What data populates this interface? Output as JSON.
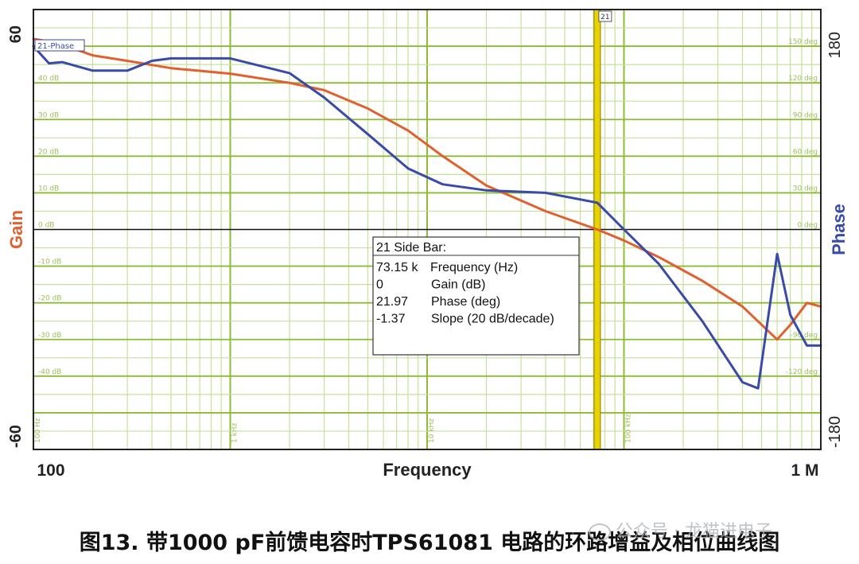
{
  "chart_data": {
    "type": "line",
    "xlabel": "Frequency",
    "ylabel_left": "Gain",
    "ylabel_right": "Phase",
    "x_scale": "log",
    "xlim": [
      100,
      1000000
    ],
    "ylim_left": [
      -60,
      60
    ],
    "ylim_right": [
      -180,
      180
    ],
    "x_tick_labels": [
      {
        "x": 100,
        "label": "100"
      },
      {
        "x": 1000000,
        "label": "1 M"
      }
    ],
    "y_left_tick_labels": [
      {
        "y": 60,
        "label": "60"
      },
      {
        "y": -60,
        "label": "-60"
      }
    ],
    "y_right_tick_labels": [
      {
        "y": 180,
        "label": "180"
      },
      {
        "y": -180,
        "label": "-180"
      }
    ],
    "inner_gain_labels": [
      {
        "y": 40,
        "label": "40 dB"
      },
      {
        "y": 30,
        "label": "30 dB"
      },
      {
        "y": 20,
        "label": "20 dB"
      },
      {
        "y": 10,
        "label": "10 dB"
      },
      {
        "y": 0,
        "label": "0 dB"
      },
      {
        "y": -10,
        "label": "-10 dB"
      },
      {
        "y": -20,
        "label": "-20 dB"
      },
      {
        "y": -30,
        "label": "-30 dB"
      },
      {
        "y": -40,
        "label": "-40 dB"
      }
    ],
    "inner_phase_labels": [
      {
        "y": 150,
        "label": "150 deg"
      },
      {
        "y": 120,
        "label": "120 deg"
      },
      {
        "y": 90,
        "label": "90 deg"
      },
      {
        "y": 60,
        "label": "60 deg"
      },
      {
        "y": 30,
        "label": "30 deg"
      },
      {
        "y": 0,
        "label": "0 deg"
      },
      {
        "y": -90,
        "label": "-90 deg"
      },
      {
        "y": -120,
        "label": "-120 deg"
      }
    ],
    "inner_freq_labels": [
      {
        "x": 100,
        "label": "100 Hz"
      },
      {
        "x": 1000,
        "label": "1 kHz"
      },
      {
        "x": 10000,
        "label": "10 kHz"
      },
      {
        "x": 100000,
        "label": "100 kHz"
      }
    ],
    "series": [
      {
        "name": "Gain",
        "axis": "left",
        "color": "#e06030",
        "x": [
          100,
          130,
          200,
          300,
          500,
          1000,
          2000,
          3000,
          5000,
          8000,
          12000,
          20000,
          40000,
          73150,
          100000,
          150000,
          250000,
          400000,
          600000,
          700000,
          850000,
          1000000
        ],
        "y": [
          52,
          51,
          47.5,
          46,
          44,
          42.5,
          40,
          38,
          33,
          27,
          20,
          12,
          5,
          0,
          -3,
          -7.5,
          -14,
          -21,
          -30,
          -26,
          -20,
          -21
        ]
      },
      {
        "name": "Phase",
        "axis": "right",
        "color": "#3a4aa8",
        "x": [
          100,
          120,
          140,
          200,
          300,
          400,
          500,
          1000,
          2000,
          3000,
          5000,
          8000,
          12000,
          20000,
          40000,
          73150,
          100000,
          150000,
          250000,
          400000,
          480000,
          600000,
          700000,
          850000,
          1000000
        ],
        "y": [
          150,
          136,
          137,
          130,
          130,
          138,
          140,
          140,
          128,
          108,
          78,
          50,
          37,
          32,
          30,
          21.97,
          0,
          -28,
          -75,
          -125,
          -130,
          -20,
          -70,
          -95,
          -95
        ]
      }
    ],
    "marker": {
      "x": 73150,
      "label": "21",
      "color": "#e8d200"
    },
    "legend": {
      "label": "21-Phase",
      "placement": "top-left"
    },
    "side_bar": {
      "title": "21 Side Bar:",
      "rows": [
        {
          "value": "73.15 k",
          "label": "Frequency (Hz)"
        },
        {
          "value": "0",
          "label": "Gain (dB)"
        },
        {
          "value": "21.97",
          "label": "Phase (deg)"
        },
        {
          "value": "-1.37",
          "label": "Slope (20 dB/decade)"
        }
      ]
    },
    "grid": true,
    "background": "#ffffff",
    "grid_major_color": "#8cbc34",
    "grid_minor_color": "#c6e09a",
    "zero_line_color": "#111111"
  },
  "caption": "图13. 带1000 pF前馈电容时TPS61081 电路的环路增益及相位曲线图",
  "watermark": "公众号 · 龙猫进电子"
}
